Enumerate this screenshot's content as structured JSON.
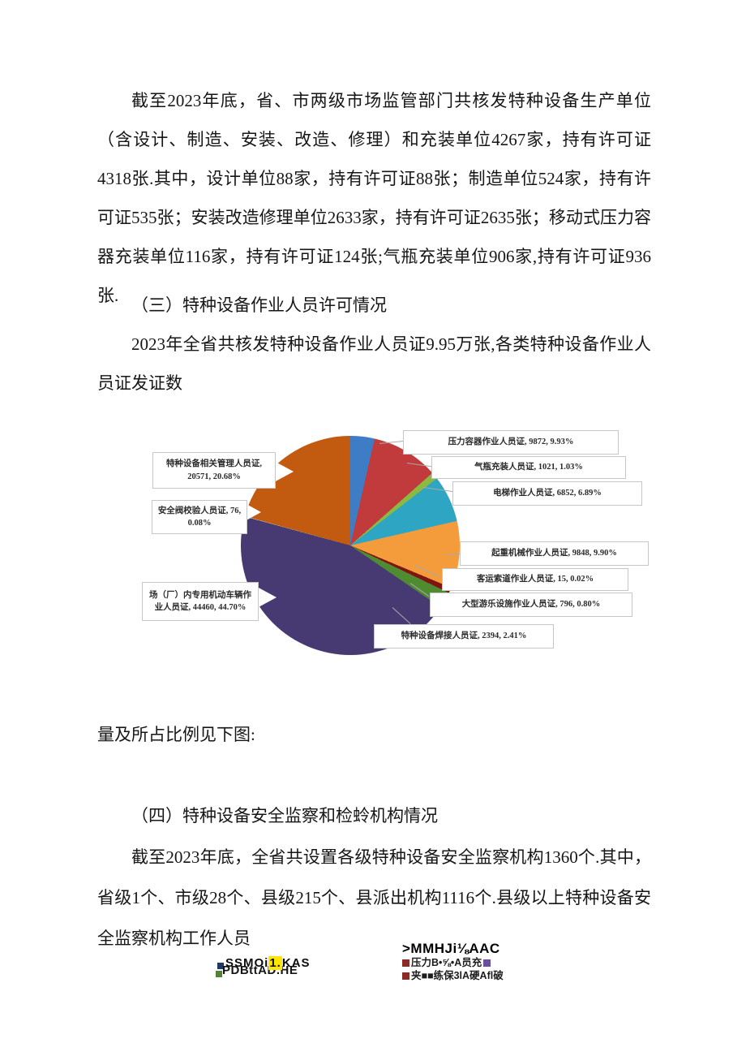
{
  "page": {
    "para1": "截至2023年底，省、市两级市场监管部门共核发特种设备生产单位（含设计、制造、安装、改造、修理）和充装单位4267家，持有许可证4318张.其中，设计单位88家，持有许可证88张；制造单位524家，持有许可证535张；安装改造修理单位2633家，持有许可证2635张；移动式压力容器充装单位116家，持有许可证124张;气瓶充装单位906家,持有许可证936张.",
    "heading3": "（三）特种设备作业人员许可情况",
    "para2": "2023年全省共核发特种设备作业人员证9.95万张,各类特种设备作业人员证发证数",
    "caption_below_chart": "量及所占比例见下图:",
    "heading4": "（四）特种设备安全监察和检蛉机构情况",
    "para3": "截至2023年底，全省共设置各级特种设备安全监察机构1360个.其中，省级1个、市级28个、县级215个、县派出机构1116个.县级以上特种设备安全监察机构工作人员"
  },
  "chart_data": {
    "type": "pie",
    "unit": "张",
    "total_reference": "9.95万张",
    "legend_position": "callout-labels",
    "slices": [
      {
        "name": "",
        "display": "",
        "pct": 3.56,
        "color": "#3e7cc6"
      },
      {
        "name": "压力容器作业人员证",
        "value": 9872,
        "pct": 9.93,
        "color": "#c13b3c",
        "display": "压力容器作业人员证, 9872, 9.93%"
      },
      {
        "name": "气瓶充装人员证",
        "value": 1021,
        "pct": 1.03,
        "color": "#8cba41",
        "display": "气瓶充装人员证, 1021, 1.03%"
      },
      {
        "name": "电梯作业人员证",
        "value": 6852,
        "pct": 6.89,
        "color": "#2ea5c2",
        "display": "电梯作业人员证, 6852, 6.89%"
      },
      {
        "name": "起重机械作业人员证",
        "value": 9848,
        "pct": 9.9,
        "color": "#f49c3b",
        "display": "起重机械作业人员证, 9848, 9.90%"
      },
      {
        "name": "客运索道作业人员证",
        "value": 15,
        "pct": 0.02,
        "color": "#7a1212",
        "display": "客运索道作业人员证, 15, 0.02%"
      },
      {
        "name": "大型游乐设施作业人员证",
        "value": 796,
        "pct": 0.8,
        "color": "#7e1513",
        "display": "大型游乐设施作业人员证, 796, 0.80%"
      },
      {
        "name": "特种设备焊接人员证",
        "value": 2394,
        "pct": 2.41,
        "color": "#4f8c31",
        "display": "特种设备焊接人员证, 2394, 2.41%"
      },
      {
        "name": "场（厂）内专用机动车辆作业人员证",
        "value": 44460,
        "pct": 44.7,
        "color": "#473a73",
        "display": "场（厂）内专用机动车辆作业人员证, 44460, 44.70%"
      },
      {
        "name": "安全阀校验人员证",
        "value": 76,
        "pct": 0.08,
        "color": "#b5b5b5",
        "display": "安全阀校验人员证, 76, 0.08%"
      },
      {
        "name": "特种设备相关管理人员证",
        "value": 20571,
        "pct": 20.68,
        "color": "#c25a10",
        "display": "特种设备相关管理人员证, 20571, 20.68%"
      }
    ]
  },
  "footer": {
    "left_line1_pre": "SSMOi",
    "left_line1_hl": "1.",
    "left_line1_post": "KAS",
    "left_line2": "PDBttAD.HE",
    "right_line1": ">MMHJi⅛AAC",
    "right_line2": "压力B•⅝•A员充",
    "right_line3": "夹■■练保3lA硬Afl破"
  }
}
